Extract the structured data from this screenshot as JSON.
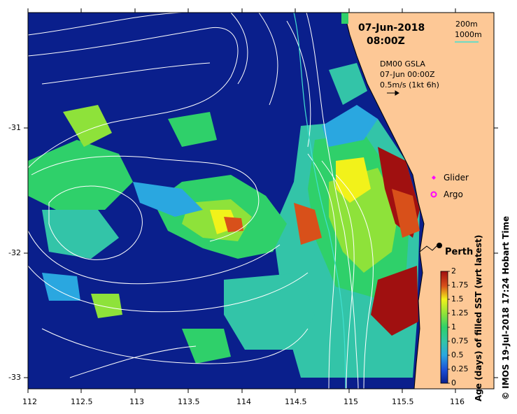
{
  "map": {
    "date": "07-Jun-2018",
    "time": "08:00Z",
    "gsla_product": "DM00 GSLA",
    "gsla_time": "07-Jun 00:00Z",
    "velocity_scale": "0.5m/s (1kt 6h)",
    "isobath_1": "200m",
    "isobath_2": "1000m",
    "city": "Perth",
    "legend": {
      "glider": "Glider",
      "argo": "Argo"
    },
    "credit": "© IMOS 19-Jul-2018 17:24 Hobart Time",
    "colors": {
      "land": "#fdc896",
      "ocean_old": "#0a1f8c",
      "coast": "#000000",
      "contour": "#ffffff",
      "isobath_1000": "#40e0d0",
      "glider": "#ff00ff",
      "argo": "#ff00ff"
    }
  },
  "axes": {
    "x_ticks": [
      "112",
      "112.5",
      "113",
      "113.5",
      "114",
      "114.5",
      "115",
      "115.5",
      "116"
    ],
    "y_ticks": [
      "-31",
      "-32",
      "-33"
    ]
  },
  "colorbar": {
    "title": "Age (days) of filled SST (wrt latest)",
    "ticks": [
      "0",
      "0.25",
      "0.5",
      "0.75",
      "1",
      "1.25",
      "1.5",
      "1.75",
      "2"
    ],
    "range": [
      0,
      2
    ],
    "colors": [
      "#0a1f8c",
      "#1c4fd8",
      "#2aa7e0",
      "#33c4a8",
      "#2fd06a",
      "#8ee23a",
      "#f2f21a",
      "#f0a81e",
      "#d8501a",
      "#a01010"
    ]
  }
}
